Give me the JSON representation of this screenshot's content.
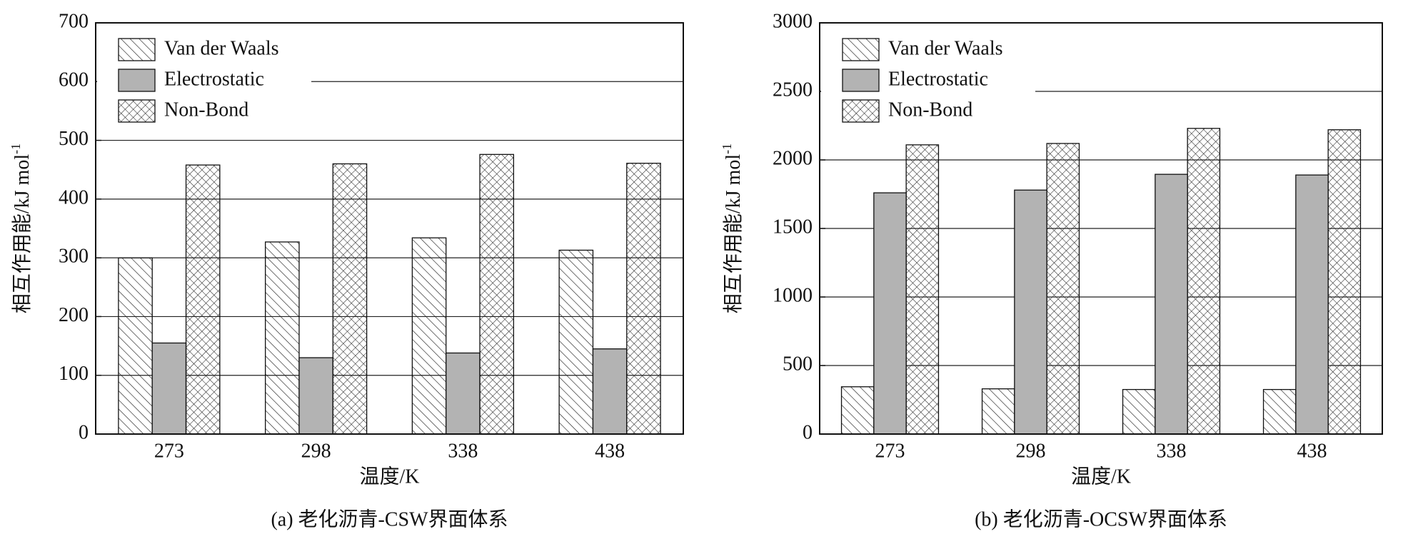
{
  "chart_data": [
    {
      "type": "bar",
      "caption": "(a) 老化沥青-CSW界面体系",
      "x_label": "温度/K",
      "y_label": "相互作用能/kJ mol",
      "y_label_sup": "-1",
      "categories": [
        "273",
        "298",
        "338",
        "438"
      ],
      "series": [
        {
          "name": "Van der Waals",
          "color": "#ffffff",
          "pattern": "diagonal",
          "values": [
            300,
            327,
            334,
            313
          ]
        },
        {
          "name": "Electrostatic",
          "color": "#b3b3b3",
          "pattern": "solid",
          "values": [
            155,
            130,
            138,
            145
          ]
        },
        {
          "name": "Non-Bond",
          "color": "#ffffff",
          "pattern": "crosshatch",
          "values": [
            458,
            460,
            476,
            461
          ]
        }
      ],
      "ylim": [
        0,
        700
      ],
      "yticks": [
        0,
        100,
        200,
        300,
        400,
        500,
        600,
        700
      ],
      "grid": true,
      "legend": "upper left"
    },
    {
      "type": "bar",
      "caption": "(b) 老化沥青-OCSW界面体系",
      "x_label": "温度/K",
      "y_label": "相互作用能/kJ mol",
      "y_label_sup": "-1",
      "categories": [
        "273",
        "298",
        "338",
        "438"
      ],
      "series": [
        {
          "name": "Van der Waals",
          "color": "#ffffff",
          "pattern": "diagonal",
          "values": [
            345,
            330,
            325,
            325
          ]
        },
        {
          "name": "Electrostatic",
          "color": "#b3b3b3",
          "pattern": "solid",
          "values": [
            1760,
            1780,
            1895,
            1890
          ]
        },
        {
          "name": "Non-Bond",
          "color": "#ffffff",
          "pattern": "crosshatch",
          "values": [
            2110,
            2120,
            2230,
            2220
          ]
        }
      ],
      "ylim": [
        0,
        3000
      ],
      "yticks": [
        0,
        500,
        1000,
        1500,
        2000,
        2500,
        3000
      ],
      "grid": true,
      "legend": "upper left"
    }
  ]
}
